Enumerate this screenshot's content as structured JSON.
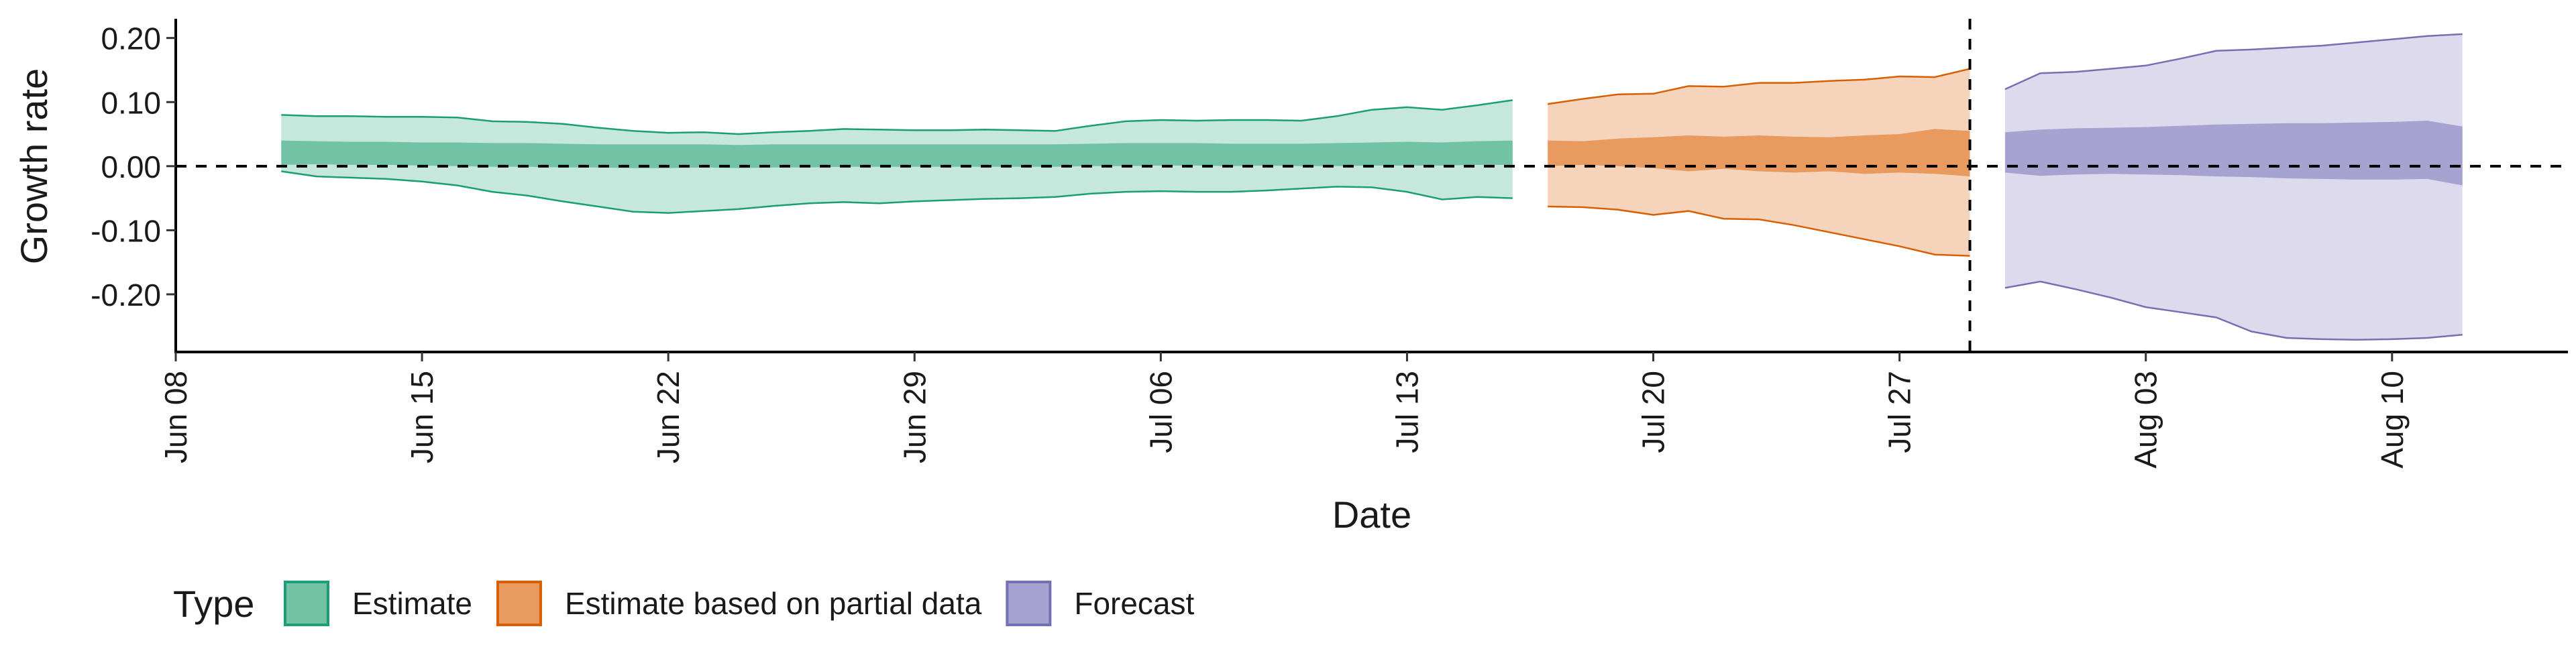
{
  "chart_data": {
    "type": "area",
    "xlabel": "Date",
    "ylabel": "Growth rate",
    "ylim": [
      -0.29,
      0.23
    ],
    "xlim": [
      "2020-06-08",
      "2020-08-15"
    ],
    "y_ticks": [
      {
        "value": 0.2,
        "label": "0.20"
      },
      {
        "value": 0.1,
        "label": "0.10"
      },
      {
        "value": 0.0,
        "label": "0.00"
      },
      {
        "value": -0.1,
        "label": "-0.10"
      },
      {
        "value": -0.2,
        "label": "-0.20"
      }
    ],
    "x_ticks": [
      {
        "date": "2020-06-08",
        "label": "Jun 08"
      },
      {
        "date": "2020-06-15",
        "label": "Jun 15"
      },
      {
        "date": "2020-06-22",
        "label": "Jun 22"
      },
      {
        "date": "2020-06-29",
        "label": "Jun 29"
      },
      {
        "date": "2020-07-06",
        "label": "Jul 06"
      },
      {
        "date": "2020-07-13",
        "label": "Jul 13"
      },
      {
        "date": "2020-07-20",
        "label": "Jul 20"
      },
      {
        "date": "2020-07-27",
        "label": "Jul 27"
      },
      {
        "date": "2020-08-03",
        "label": "Aug 03"
      },
      {
        "date": "2020-08-10",
        "label": "Aug 10"
      }
    ],
    "reference_lines": [
      {
        "axis": "y",
        "value": 0.0,
        "style": "dashed"
      },
      {
        "axis": "x",
        "date": "2020-07-29",
        "style": "dashed"
      }
    ],
    "legend": {
      "title": "Type",
      "position": "bottom",
      "entries": [
        {
          "label": "Estimate",
          "fill": "#72c2a5",
          "stroke": "#1b9e77"
        },
        {
          "label": "Estimate based on partial data",
          "fill": "#e89a5f",
          "stroke": "#d95f02"
        },
        {
          "label": "Forecast",
          "fill": "#a7a3d1",
          "stroke": "#7570b3"
        }
      ]
    },
    "series": [
      {
        "type": "Estimate",
        "outer_color": "#c6e7dc",
        "inner_color": "#72c2a5",
        "line_color": "#1b9e77",
        "dates": [
          "2020-06-11",
          "2020-06-12",
          "2020-06-13",
          "2020-06-14",
          "2020-06-15",
          "2020-06-16",
          "2020-06-17",
          "2020-06-18",
          "2020-06-19",
          "2020-06-20",
          "2020-06-21",
          "2020-06-22",
          "2020-06-23",
          "2020-06-24",
          "2020-06-25",
          "2020-06-26",
          "2020-06-27",
          "2020-06-28",
          "2020-06-29",
          "2020-06-30",
          "2020-07-01",
          "2020-07-02",
          "2020-07-03",
          "2020-07-04",
          "2020-07-05",
          "2020-07-06",
          "2020-07-07",
          "2020-07-08",
          "2020-07-09",
          "2020-07-10",
          "2020-07-11",
          "2020-07-12",
          "2020-07-13",
          "2020-07-14",
          "2020-07-15",
          "2020-07-16"
        ],
        "upper90": [
          0.08,
          0.078,
          0.078,
          0.077,
          0.077,
          0.076,
          0.07,
          0.069,
          0.066,
          0.06,
          0.055,
          0.052,
          0.053,
          0.05,
          0.053,
          0.055,
          0.058,
          0.057,
          0.056,
          0.056,
          0.057,
          0.056,
          0.055,
          0.063,
          0.07,
          0.072,
          0.071,
          0.072,
          0.072,
          0.071,
          0.078,
          0.088,
          0.092,
          0.088,
          0.095,
          0.103
        ],
        "upper50": [
          0.04,
          0.039,
          0.038,
          0.038,
          0.037,
          0.037,
          0.036,
          0.036,
          0.035,
          0.034,
          0.034,
          0.034,
          0.034,
          0.033,
          0.034,
          0.034,
          0.034,
          0.034,
          0.034,
          0.034,
          0.034,
          0.034,
          0.034,
          0.035,
          0.036,
          0.036,
          0.036,
          0.035,
          0.035,
          0.035,
          0.036,
          0.037,
          0.038,
          0.037,
          0.039,
          0.04
        ],
        "lower50": [
          0.002,
          0.003,
          0.002,
          0.002,
          0.001,
          0.0,
          -0.001,
          -0.001,
          -0.002,
          -0.002,
          -0.003,
          -0.003,
          -0.002,
          -0.003,
          -0.002,
          -0.002,
          -0.001,
          -0.001,
          -0.001,
          -0.001,
          -0.001,
          -0.001,
          -0.001,
          0.0,
          0.0,
          0.001,
          0.001,
          0.0,
          0.001,
          0.0,
          0.0,
          0.001,
          0.001,
          0.001,
          0.002,
          0.002
        ],
        "lower90": [
          -0.008,
          -0.016,
          -0.018,
          -0.02,
          -0.024,
          -0.03,
          -0.04,
          -0.046,
          -0.055,
          -0.063,
          -0.071,
          -0.073,
          -0.07,
          -0.067,
          -0.062,
          -0.058,
          -0.056,
          -0.058,
          -0.055,
          -0.053,
          -0.051,
          -0.05,
          -0.048,
          -0.043,
          -0.04,
          -0.039,
          -0.04,
          -0.04,
          -0.038,
          -0.035,
          -0.032,
          -0.033,
          -0.04,
          -0.052,
          -0.048,
          -0.05
        ]
      },
      {
        "type": "Estimate based on partial data",
        "outer_color": "#f6d3bb",
        "inner_color": "#e89a5f",
        "line_color": "#d95f02",
        "dates": [
          "2020-07-17",
          "2020-07-18",
          "2020-07-19",
          "2020-07-20",
          "2020-07-21",
          "2020-07-22",
          "2020-07-23",
          "2020-07-24",
          "2020-07-25",
          "2020-07-26",
          "2020-07-27",
          "2020-07-28",
          "2020-07-29"
        ],
        "upper90": [
          0.097,
          0.105,
          0.112,
          0.113,
          0.125,
          0.124,
          0.13,
          0.13,
          0.133,
          0.135,
          0.14,
          0.139,
          0.152
        ],
        "upper50": [
          0.04,
          0.039,
          0.043,
          0.045,
          0.048,
          0.046,
          0.048,
          0.046,
          0.045,
          0.048,
          0.05,
          0.058,
          0.055
        ],
        "lower50": [
          0.0,
          0.002,
          0.0,
          -0.003,
          -0.008,
          -0.004,
          -0.008,
          -0.01,
          -0.008,
          -0.012,
          -0.01,
          -0.012,
          -0.016
        ],
        "lower90": [
          -0.063,
          -0.064,
          -0.068,
          -0.076,
          -0.07,
          -0.082,
          -0.083,
          -0.092,
          -0.103,
          -0.114,
          -0.125,
          -0.138,
          -0.14
        ]
      },
      {
        "type": "Forecast",
        "outer_color": "#dcdaec",
        "inner_color": "#a7a3d1",
        "line_color": "#7570b3",
        "dates": [
          "2020-07-30",
          "2020-07-31",
          "2020-08-01",
          "2020-08-02",
          "2020-08-03",
          "2020-08-04",
          "2020-08-05",
          "2020-08-06",
          "2020-08-07",
          "2020-08-08",
          "2020-08-09",
          "2020-08-10",
          "2020-08-11",
          "2020-08-12"
        ],
        "upper90": [
          0.12,
          0.145,
          0.147,
          0.152,
          0.157,
          0.168,
          0.18,
          0.182,
          0.185,
          0.188,
          0.193,
          0.198,
          0.203,
          0.206
        ],
        "upper50": [
          0.053,
          0.057,
          0.059,
          0.06,
          0.061,
          0.063,
          0.065,
          0.066,
          0.067,
          0.067,
          0.068,
          0.069,
          0.071,
          0.062
        ],
        "lower50": [
          -0.01,
          -0.015,
          -0.013,
          -0.012,
          -0.013,
          -0.014,
          -0.016,
          -0.017,
          -0.019,
          -0.02,
          -0.021,
          -0.021,
          -0.02,
          -0.03
        ],
        "lower90": [
          -0.19,
          -0.18,
          -0.192,
          -0.205,
          -0.22,
          -0.228,
          -0.236,
          -0.258,
          -0.268,
          -0.27,
          -0.271,
          -0.27,
          -0.268,
          -0.263
        ]
      }
    ]
  }
}
